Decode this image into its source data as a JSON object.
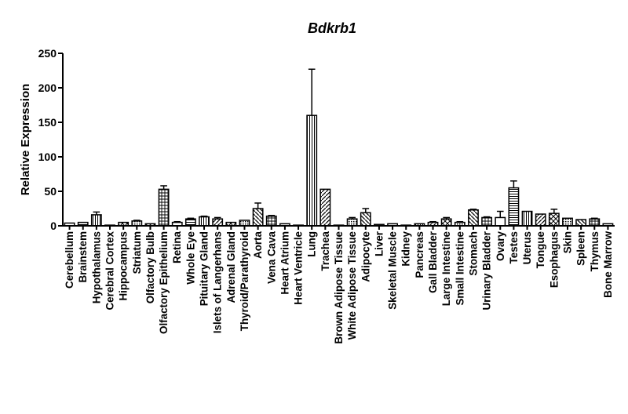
{
  "chart_data": {
    "type": "bar",
    "title": "Bdkrb1",
    "xlabel": "",
    "ylabel": "Relative Expression",
    "ylim": [
      0,
      250
    ],
    "yticks": [
      "0",
      "50",
      "100",
      "150",
      "200",
      "250"
    ],
    "grid": false,
    "categories": [
      "Cerebellum",
      "Brainstem",
      "Hypothalamus",
      "Cerebral Cortex",
      "Hippocampus",
      "Striatum",
      "Olfactory Bulb",
      "Olfactory Epithelium",
      "Retina",
      "Whole Eye",
      "Pituitary Gland",
      "Islets of Langerhans",
      "Adrenal Gland",
      "Thyroid/Parathyroid",
      "Aorta",
      "Vena Cava",
      "Heart Atrium",
      "Heart Ventricle",
      "Lung",
      "Trachea",
      "Brown Adipose Tissue",
      "White Adipose Tissue",
      "Adipocyte",
      "Liver",
      "Skeletal Muscle",
      "Kidney",
      "Pancreas",
      "Gall Bladder",
      "Large Intestine",
      "Small Intestine",
      "Stomach",
      "Urinary Bladder",
      "Ovary",
      "Testes",
      "Uterus",
      "Tongue",
      "Esophagus",
      "Skin",
      "Spleen",
      "Thymus",
      "Bone Marrow"
    ],
    "values": [
      4,
      5,
      16,
      1,
      5,
      7,
      3,
      53,
      5,
      10,
      13,
      10,
      5,
      8,
      25,
      14,
      3,
      1,
      160,
      53,
      1,
      10,
      19,
      2,
      3,
      1,
      3,
      5,
      10,
      5,
      23,
      12,
      12,
      55,
      21,
      17,
      18,
      11,
      9,
      10,
      3
    ],
    "errors": [
      0,
      0,
      4,
      0,
      0,
      1,
      0,
      5,
      1,
      1,
      1,
      2,
      0,
      0,
      8,
      1,
      0,
      0,
      67,
      0,
      0,
      2,
      6,
      0,
      0,
      0,
      0,
      1,
      2,
      1,
      1,
      1,
      9,
      10,
      0,
      0,
      6,
      0,
      0,
      1,
      0
    ]
  }
}
